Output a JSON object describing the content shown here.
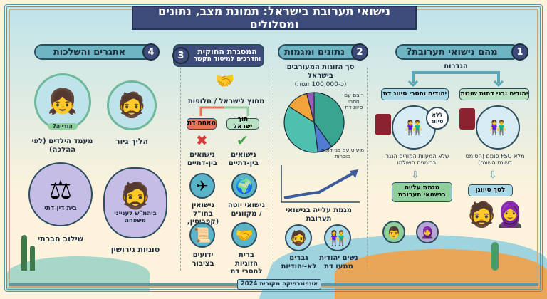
{
  "title": "נישואי תערובת בישראל: תמונת מצב, נתונים ומסלולים",
  "colors": {
    "banner": "#3e4c7c",
    "pill": "#6fb4c2",
    "green": "#8fcf9c",
    "red": "#e8735a",
    "teal": "#3aa58f",
    "orange": "#f2a33a",
    "purple": "#9a5cb8",
    "blue": "#4f7bd0"
  },
  "section1": {
    "number": "1",
    "title": "מהם נישואי תערובת?",
    "definitions": "הגדרות",
    "box_left": "יהודים וחסרי סיווג דת",
    "box_right": "יהודים ובני דתות שונות",
    "bubble": "ללא סיווג",
    "caption_left": "שלא המעוות המורים הנגרו ברומנים השולמו",
    "caption_right": "מלא FSU סומם (הסומט דשונת השונה)",
    "trend_box": "מגמת עלייה בנישואי תערובת",
    "sum_box": "לסך סיווגן"
  },
  "section2": {
    "number": "2",
    "title": "נתונים ומגמות",
    "pie_title": "סך הזוגות המעורבים בישראל",
    "pie_subtitle": "(כ-100,000 זוגות)",
    "pie_label_majority": "רובם עם חסרי סיווג דת",
    "pie_label_minority": "מיעוט עם בני דתות מוכרות",
    "trend_label": "מגמת עלייה בנישואי תערובת",
    "group_women": "נשים יהודית ממעו דת",
    "group_men": "גברים לא-יהודיות"
  },
  "chart_data": {
    "type": "pie",
    "title": "סך הזוגות המעורבים בישראל",
    "slices": [
      {
        "value": 40,
        "color": "#3aa58f"
      },
      {
        "value": 8,
        "color": "#4f7bd0"
      },
      {
        "value": 36,
        "color": "#4fc0b0"
      },
      {
        "value": 12,
        "color": "#f2a33a"
      },
      {
        "value": 4,
        "color": "#9a5cb8"
      }
    ]
  },
  "section3": {
    "number": "3",
    "title_line1": "המסגרת החוקית",
    "title_line2": "והדרכים למיסוד הקשר",
    "outside": "מחוץ לישראל / חלופות",
    "inside_box": "תוך ישראל",
    "forbidden_box": "מאחה דת",
    "allowed": "נישואים בין-דתיים",
    "not_allowed": "נישואים בין-דתיים",
    "item_globe": "נישואי יוטה / מקוונים",
    "item_plane": "נישואין בחו\"ל (קפריסין, וכו')",
    "item_handshake": "ברית הזוגיות לחסרי דת",
    "item_document": "ידועים בציבור"
  },
  "section4": {
    "number": "4",
    "title": "אתגרים והשלכות",
    "conversion": "הליך גיור",
    "children": "מעמד הילדים (לפי ההלכה)",
    "jewish_tag": "הודייה?",
    "divorce_court": "ביהמ\"ש לענייני משפחה",
    "divorce": "סוגיות גירושין",
    "religious_court": "בית דין דתי",
    "integration": "שילוב חברתי"
  },
  "footer": "אינפוגרפיקה מקורית 2024"
}
